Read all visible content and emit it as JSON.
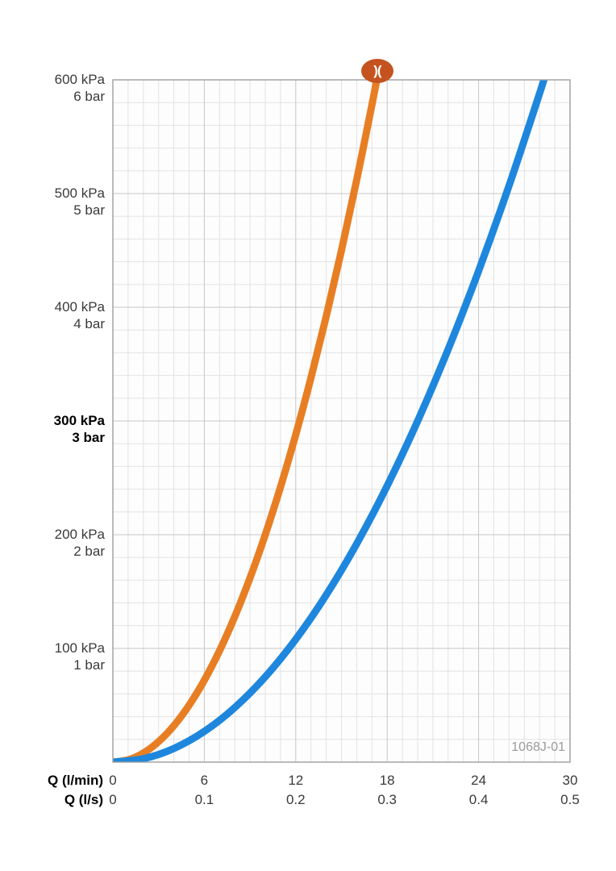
{
  "brand": {
    "logo_glyph": ")(",
    "logo_color": "#c4531f"
  },
  "chart_data": {
    "type": "line",
    "title": "",
    "code_label": "1068J-01",
    "grid": true,
    "legend": false,
    "colors": {
      "grid_minor": "#e3e3e3",
      "grid_major": "#c6c6c6",
      "plot_border": "#9e9e9e",
      "plot_background": "#fdfdfd"
    },
    "x_axis": {
      "min": 0,
      "max": 30,
      "major_step": 6,
      "minor_step": 1,
      "tick_values": [
        0,
        6,
        12,
        18,
        24,
        30
      ],
      "rows": [
        {
          "label": "Q (l/min)",
          "ticks": [
            "0",
            "6",
            "12",
            "18",
            "24",
            "30"
          ]
        },
        {
          "label": "Q (l/s)",
          "ticks": [
            "0",
            "0.1",
            "0.2",
            "0.3",
            "0.4",
            "0.5"
          ]
        }
      ]
    },
    "y_axis": {
      "min": 0,
      "max": 600,
      "major_step": 100,
      "minor_step": 20,
      "unit_labels": [
        "kPa",
        "bar"
      ],
      "ticks": [
        {
          "value": 600,
          "kpa": "600 kPa",
          "bar": "6 bar",
          "bold": false
        },
        {
          "value": 500,
          "kpa": "500 kPa",
          "bar": "5 bar",
          "bold": false
        },
        {
          "value": 400,
          "kpa": "400 kPa",
          "bar": "4 bar",
          "bold": false
        },
        {
          "value": 300,
          "kpa": "300 kPa",
          "bar": "3 bar",
          "bold": true
        },
        {
          "value": 200,
          "kpa": "200 kPa",
          "bar": "2 bar",
          "bold": false
        },
        {
          "value": 100,
          "kpa": "100 kPa",
          "bar": "1 bar",
          "bold": false
        }
      ]
    },
    "series": [
      {
        "name": "pressure-drop-curve-orange",
        "color": "#e87e23",
        "points": [
          [
            0,
            0
          ],
          [
            1,
            2
          ],
          [
            2,
            8
          ],
          [
            3,
            18
          ],
          [
            4,
            32
          ],
          [
            5,
            50
          ],
          [
            6,
            72
          ],
          [
            7,
            98
          ],
          [
            8,
            128
          ],
          [
            9,
            162
          ],
          [
            10,
            200
          ],
          [
            11,
            242
          ],
          [
            12,
            288
          ],
          [
            13,
            338
          ],
          [
            14,
            392
          ],
          [
            15,
            450
          ],
          [
            16,
            512
          ],
          [
            17,
            578
          ],
          [
            17.4,
            606
          ]
        ]
      },
      {
        "name": "pressure-drop-curve-blue",
        "color": "#1e87dd",
        "points": [
          [
            0,
            0
          ],
          [
            2,
            3
          ],
          [
            4,
            12
          ],
          [
            6,
            27
          ],
          [
            8,
            48
          ],
          [
            10,
            75
          ],
          [
            12,
            108
          ],
          [
            14,
            147
          ],
          [
            16,
            192
          ],
          [
            18,
            243
          ],
          [
            20,
            300
          ],
          [
            22,
            363
          ],
          [
            24,
            432
          ],
          [
            26,
            507
          ],
          [
            28,
            588
          ],
          [
            28.5,
            610
          ]
        ]
      }
    ]
  }
}
